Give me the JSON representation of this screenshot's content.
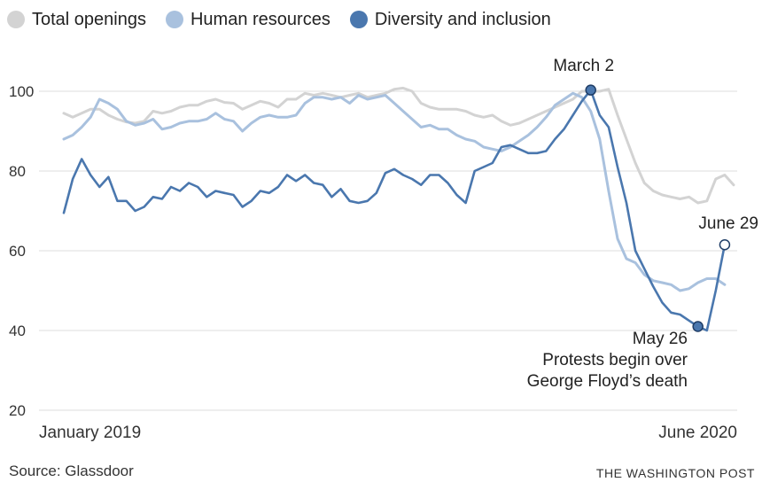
{
  "chart_data": {
    "type": "line",
    "x": [
      "2019-01",
      "2019-01",
      "2019-01",
      "2019-01",
      "2019-02",
      "2019-02",
      "2019-02",
      "2019-02",
      "2019-03",
      "2019-03",
      "2019-03",
      "2019-03",
      "2019-04",
      "2019-04",
      "2019-04",
      "2019-04",
      "2019-05",
      "2019-05",
      "2019-05",
      "2019-05",
      "2019-06",
      "2019-06",
      "2019-06",
      "2019-06",
      "2019-07",
      "2019-07",
      "2019-07",
      "2019-07",
      "2019-08",
      "2019-08",
      "2019-08",
      "2019-08",
      "2019-09",
      "2019-09",
      "2019-09",
      "2019-09",
      "2019-10",
      "2019-10",
      "2019-10",
      "2019-10",
      "2019-11",
      "2019-11",
      "2019-11",
      "2019-11",
      "2019-12",
      "2019-12",
      "2019-12",
      "2019-12",
      "2020-01",
      "2020-01",
      "2020-01",
      "2020-01",
      "2020-02",
      "2020-02",
      "2020-02",
      "2020-02",
      "2020-03",
      "2020-03",
      "2020-03",
      "2020-03",
      "2020-04",
      "2020-04",
      "2020-04",
      "2020-04",
      "2020-05",
      "2020-05",
      "2020-05",
      "2020-05",
      "2020-06",
      "2020-06",
      "2020-06",
      "2020-06",
      "2020-06",
      "2020-06",
      "2020-06",
      "2020-06",
      "2020-06",
      "2020-06",
      "2020-06",
      "2020-06",
      "2020-06",
      "2020-06",
      "2020-06",
      "2020-06"
    ],
    "series": [
      {
        "name": "Total openings",
        "color": "#d3d3d3",
        "values": [
          94.5,
          93.5,
          94.5,
          95.5,
          95.5,
          94,
          93,
          92.3,
          92,
          92.5,
          95,
          94.5,
          95,
          96,
          96.5,
          96.5,
          97.5,
          98,
          97.2,
          97,
          95.5,
          96.5,
          97.5,
          97,
          96,
          98,
          98,
          99.5,
          99,
          99.5,
          99,
          98.5,
          99,
          99.5,
          98.5,
          99,
          99.5,
          100.5,
          100.8,
          100,
          97,
          96,
          95.5,
          95.5,
          95.5,
          95,
          94,
          93.5,
          94,
          92.5,
          91.5,
          92,
          93,
          94,
          95,
          96,
          97,
          98,
          100,
          100,
          100,
          100.5,
          94,
          88,
          82,
          77,
          75,
          74,
          73.5,
          73,
          73.5,
          72,
          72.5,
          78,
          79,
          76.5,
          null,
          null,
          null,
          null,
          null,
          null,
          null,
          null
        ]
      },
      {
        "name": "Human resources",
        "color": "#a9c1de",
        "values": [
          88,
          89,
          91,
          93.5,
          98,
          97,
          95.5,
          92.5,
          91.5,
          92,
          93,
          90.5,
          91,
          92,
          92.5,
          92.5,
          93,
          94.5,
          93,
          92.5,
          90,
          92,
          93.5,
          94,
          93.5,
          93.5,
          94,
          97,
          98.5,
          98.5,
          98,
          98.5,
          97,
          99,
          98,
          98.5,
          99,
          97,
          95,
          93,
          91,
          91.5,
          90.5,
          90.5,
          89,
          88,
          87.5,
          86,
          85.5,
          85,
          86,
          87.5,
          89,
          91,
          93.5,
          96.5,
          98,
          99.5,
          98.5,
          95,
          88,
          75,
          63,
          58,
          57,
          54,
          52.5,
          52,
          51.5,
          50,
          50.5,
          52,
          53,
          53,
          51.5,
          null,
          null,
          null,
          null,
          null,
          null,
          null,
          null,
          null
        ]
      },
      {
        "name": "Diversity and inclusion",
        "color": "#4a77ae",
        "values": [
          69.5,
          78,
          83,
          79,
          76,
          78.5,
          72.5,
          72.5,
          70,
          71,
          73.5,
          73,
          76,
          75,
          77,
          76,
          73.5,
          75,
          74.5,
          74,
          71,
          72.5,
          75,
          74.5,
          76,
          79,
          77.5,
          79,
          77,
          76.5,
          73.5,
          75.5,
          72.5,
          72,
          72.5,
          74.5,
          79.5,
          80.5,
          79,
          78,
          76.5,
          79,
          79,
          77,
          74,
          72,
          80,
          81,
          82,
          86,
          86.5,
          85.5,
          84.5,
          84.5,
          85,
          88,
          90.5,
          94,
          97.5,
          100.3,
          94,
          91,
          81,
          72,
          60,
          55.5,
          51,
          47,
          44.5,
          44,
          42.5,
          41,
          40,
          50,
          61.5,
          null,
          null,
          null,
          null,
          null,
          null,
          null,
          null,
          null
        ]
      }
    ],
    "ylim": [
      20,
      100
    ],
    "yticks": [
      "20",
      "40",
      "60",
      "80",
      "100"
    ],
    "ytick_values": [
      20,
      40,
      60,
      80,
      100
    ],
    "xtick_labels": [
      "January 2019",
      "June 2020"
    ],
    "grid": true,
    "legend_placement": "top-left",
    "annotations": {
      "march": {
        "label": "March 2",
        "series_index": 2,
        "point_index": 59
      },
      "may": {
        "label_lines": [
          "May 26",
          "Protests begin over",
          "George Floyd’s death"
        ],
        "series_index": 2,
        "point_index": 71
      },
      "june": {
        "label": "June 29",
        "series_index": 2,
        "point_index": 74
      }
    },
    "source": "Source: Glassdoor",
    "brand": "THE WASHINGTON POST"
  }
}
